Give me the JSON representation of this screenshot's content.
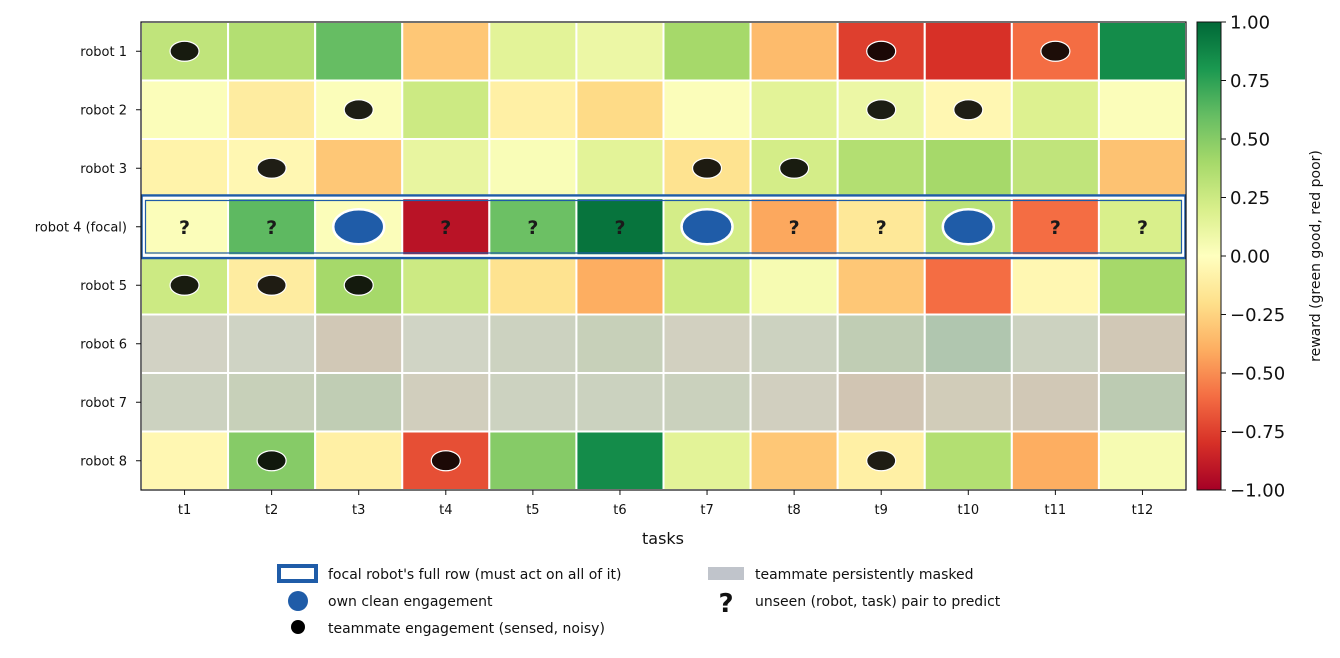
{
  "chart_data": {
    "type": "heatmap",
    "xlabel": "tasks",
    "colorbar_label": "reward (green good, red poor)",
    "colorbar_range": [
      -1.0,
      1.0
    ],
    "colorbar_ticks": [
      "1.00",
      "0.75",
      "0.50",
      "0.25",
      "0.00",
      "−0.25",
      "−0.50",
      "−0.75",
      "−1.00"
    ],
    "colormap": "RdYlGn",
    "masked_color": "#c0c4cb",
    "tasks": [
      "t1",
      "t2",
      "t3",
      "t4",
      "t5",
      "t6",
      "t7",
      "t8",
      "t9",
      "t10",
      "t11",
      "t12"
    ],
    "robots": [
      "robot 1",
      "robot 2",
      "robot 3",
      "robot 4 (focal)",
      "robot 5",
      "robot 6",
      "robot 7",
      "robot 8"
    ],
    "focal_robot_index": 3,
    "values": [
      [
        0.3,
        0.35,
        0.6,
        -0.3,
        0.15,
        0.1,
        0.4,
        -0.35,
        -0.75,
        -0.8,
        -0.6,
        0.85
      ],
      [
        0.02,
        -0.12,
        0.02,
        0.25,
        -0.1,
        -0.22,
        0.02,
        0.15,
        0.1,
        -0.05,
        0.18,
        0.02
      ],
      [
        -0.08,
        -0.05,
        -0.3,
        0.12,
        0.03,
        0.15,
        -0.18,
        0.22,
        0.35,
        0.4,
        0.3,
        -0.32
      ],
      [
        0.02,
        0.62,
        0.02,
        -0.92,
        0.58,
        0.95,
        0.22,
        -0.42,
        -0.15,
        0.32,
        -0.6,
        0.2
      ],
      [
        0.25,
        -0.12,
        0.4,
        0.25,
        -0.18,
        -0.4,
        0.25,
        0.05,
        -0.3,
        -0.6,
        -0.05,
        0.4
      ],
      [
        -0.05,
        0.05,
        -0.25,
        0.03,
        0.1,
        0.2,
        -0.1,
        0.1,
        0.3,
        0.5,
        0.1,
        -0.25
      ],
      [
        0.1,
        0.2,
        0.3,
        -0.15,
        0.1,
        0.12,
        0.15,
        -0.12,
        -0.3,
        -0.2,
        -0.25,
        0.35
      ],
      [
        -0.05,
        0.5,
        -0.1,
        -0.7,
        0.5,
        0.85,
        0.15,
        -0.3,
        -0.1,
        0.35,
        -0.4,
        0.05
      ]
    ],
    "masked_rows": [
      5,
      6
    ],
    "teammate_engagements": [
      [
        0,
        0
      ],
      [
        0,
        8
      ],
      [
        0,
        10
      ],
      [
        1,
        2
      ],
      [
        1,
        8
      ],
      [
        1,
        9
      ],
      [
        2,
        1
      ],
      [
        2,
        6
      ],
      [
        2,
        7
      ],
      [
        4,
        0
      ],
      [
        4,
        1
      ],
      [
        4,
        2
      ],
      [
        7,
        1
      ],
      [
        7,
        3
      ],
      [
        7,
        8
      ]
    ],
    "own_engagements": [
      2,
      6,
      9
    ],
    "unseen_marker": "?",
    "legend": [
      {
        "key": "focal-row",
        "label": "focal robot's full row (must act on all of it)"
      },
      {
        "key": "masked",
        "label": "teammate persistently masked"
      },
      {
        "key": "own",
        "label": "own clean engagement"
      },
      {
        "key": "unseen",
        "label": "unseen (robot, task) pair to predict",
        "symbol": "?"
      },
      {
        "key": "teammate",
        "label": "teammate engagement (sensed, noisy)"
      }
    ],
    "colors": {
      "focal_outline": "#1f5ca8",
      "own_marker": "#1f5ca8",
      "teammate_marker": "#1a1a1a"
    }
  }
}
